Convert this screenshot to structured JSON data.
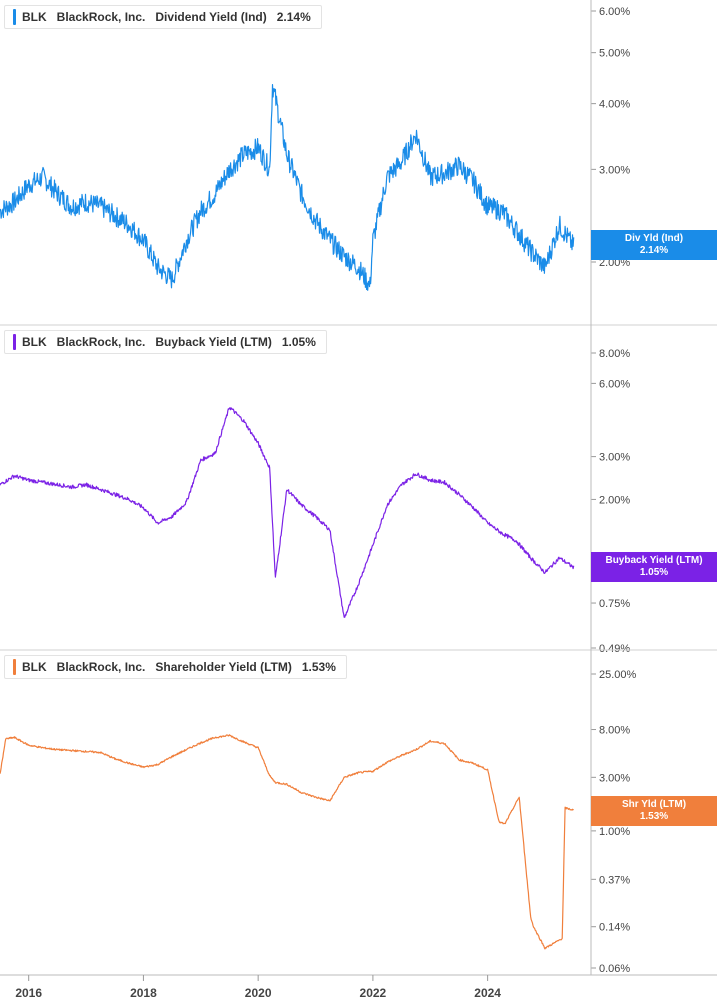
{
  "chart_data": [
    {
      "type": "line",
      "ticker": "BLK",
      "company": "BlackRock, Inc.",
      "metric": "Dividend Yield (Ind)",
      "current": "2.14%",
      "badge_label": "Div Yld (Ind)",
      "badge_value": "2.14%",
      "color": "#1a8ce8",
      "yscale": "log",
      "yticks": [
        "6.00%",
        "5.00%",
        "4.00%",
        "3.00%",
        "2.00%"
      ],
      "ytick_values": [
        6.0,
        5.0,
        4.0,
        3.0,
        2.0
      ],
      "x": [
        2015.5,
        2015.75,
        2016.0,
        2016.25,
        2016.5,
        2016.75,
        2017.0,
        2017.25,
        2017.5,
        2017.75,
        2018.0,
        2018.25,
        2018.5,
        2018.75,
        2019.0,
        2019.25,
        2019.5,
        2019.75,
        2020.0,
        2020.2,
        2020.25,
        2020.5,
        2020.75,
        2021.0,
        2021.25,
        2021.5,
        2021.75,
        2021.95,
        2022.0,
        2022.25,
        2022.5,
        2022.75,
        2023.0,
        2023.25,
        2023.5,
        2023.75,
        2024.0,
        2024.25,
        2024.5,
        2024.75,
        2025.0,
        2025.25,
        2025.5
      ],
      "values": [
        2.5,
        2.6,
        2.8,
        2.9,
        2.7,
        2.55,
        2.6,
        2.55,
        2.45,
        2.35,
        2.2,
        1.95,
        1.85,
        2.2,
        2.5,
        2.7,
        3.0,
        3.2,
        3.3,
        3.0,
        4.35,
        3.2,
        2.7,
        2.4,
        2.2,
        2.05,
        1.95,
        1.8,
        2.2,
        2.9,
        3.1,
        3.5,
        2.9,
        2.95,
        3.05,
        2.85,
        2.55,
        2.5,
        2.3,
        2.1,
        1.95,
        2.35,
        2.14
      ]
    },
    {
      "type": "line",
      "ticker": "BLK",
      "company": "BlackRock, Inc.",
      "metric": "Buyback Yield (LTM)",
      "current": "1.05%",
      "badge_label": "Buyback Yield (LTM)",
      "badge_value": "1.05%",
      "color": "#7b22e6",
      "yscale": "log",
      "yticks": [
        "8.00%",
        "6.00%",
        "3.00%",
        "2.00%",
        "0.75%",
        "0.49%"
      ],
      "ytick_values": [
        8.0,
        6.0,
        3.0,
        2.0,
        0.75,
        0.49
      ],
      "x": [
        2015.5,
        2015.75,
        2016.0,
        2016.25,
        2016.5,
        2016.75,
        2017.0,
        2017.25,
        2017.5,
        2017.75,
        2018.0,
        2018.25,
        2018.5,
        2018.75,
        2019.0,
        2019.25,
        2019.5,
        2019.75,
        2020.0,
        2020.2,
        2020.3,
        2020.5,
        2020.75,
        2021.0,
        2021.25,
        2021.5,
        2021.75,
        2022.0,
        2022.25,
        2022.5,
        2022.75,
        2023.0,
        2023.25,
        2023.5,
        2023.75,
        2024.0,
        2024.25,
        2024.5,
        2024.75,
        2025.0,
        2025.25,
        2025.5
      ],
      "values": [
        2.3,
        2.5,
        2.4,
        2.35,
        2.3,
        2.25,
        2.3,
        2.2,
        2.1,
        2.0,
        1.85,
        1.6,
        1.7,
        1.95,
        2.9,
        3.1,
        4.8,
        4.2,
        3.4,
        2.7,
        0.95,
        2.2,
        1.9,
        1.7,
        1.5,
        0.65,
        0.9,
        1.3,
        1.9,
        2.3,
        2.55,
        2.4,
        2.35,
        2.1,
        1.85,
        1.6,
        1.45,
        1.35,
        1.15,
        1.0,
        1.15,
        1.05
      ]
    },
    {
      "type": "line",
      "ticker": "BLK",
      "company": "BlackRock, Inc.",
      "metric": "Shareholder Yield (LTM)",
      "current": "1.53%",
      "badge_label": "Shr Yld (LTM)",
      "badge_value": "1.53%",
      "color": "#f07f3c",
      "yscale": "log",
      "yticks": [
        "25.00%",
        "8.00%",
        "3.00%",
        "1.00%",
        "0.37%",
        "0.14%",
        "0.06%"
      ],
      "ytick_values": [
        25.0,
        8.0,
        3.0,
        1.0,
        0.37,
        0.14,
        0.06
      ],
      "x": [
        2015.5,
        2015.6,
        2015.75,
        2016.0,
        2016.25,
        2016.5,
        2016.75,
        2017.0,
        2017.25,
        2017.5,
        2017.75,
        2018.0,
        2018.25,
        2018.5,
        2018.75,
        2019.0,
        2019.25,
        2019.5,
        2019.75,
        2020.0,
        2020.2,
        2020.3,
        2020.5,
        2020.75,
        2021.0,
        2021.25,
        2021.5,
        2021.75,
        2022.0,
        2022.25,
        2022.5,
        2022.75,
        2023.0,
        2023.25,
        2023.5,
        2023.75,
        2024.0,
        2024.2,
        2024.3,
        2024.55,
        2024.75,
        2024.8,
        2025.0,
        2025.3,
        2025.35,
        2025.5
      ],
      "values": [
        3.2,
        6.6,
        6.8,
        5.8,
        5.5,
        5.3,
        5.2,
        5.1,
        5.0,
        4.4,
        4.0,
        3.7,
        3.9,
        4.6,
        5.3,
        6.1,
        6.8,
        7.1,
        6.2,
        5.5,
        3.1,
        2.7,
        2.6,
        2.2,
        2.0,
        1.85,
        3.0,
        3.3,
        3.4,
        4.1,
        4.7,
        5.3,
        6.3,
        6.0,
        4.3,
        4.0,
        3.5,
        1.2,
        1.15,
        2.0,
        0.17,
        0.14,
        0.09,
        0.11,
        1.6,
        1.53
      ]
    }
  ],
  "x_axis": {
    "labels": [
      "2016",
      "2018",
      "2020",
      "2022",
      "2024"
    ],
    "values": [
      2016,
      2018,
      2020,
      2022,
      2024
    ],
    "range": [
      2015.5,
      2025.8
    ]
  }
}
